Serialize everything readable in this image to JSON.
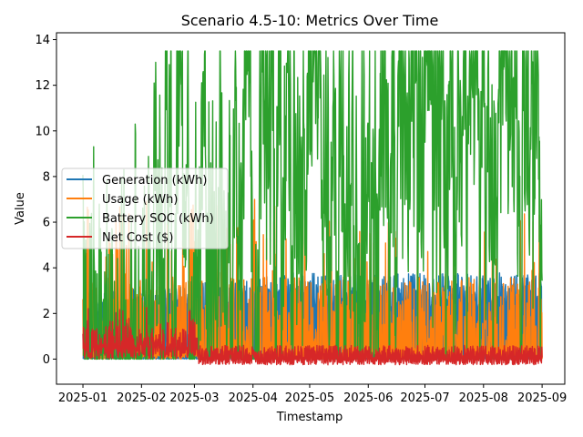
{
  "chart_data": {
    "type": "line",
    "title": "Scenario 4.5-10: Metrics Over Time",
    "xlabel": "Timestamp",
    "ylabel": "Value",
    "x_ticks": [
      "2025-01",
      "2025-02",
      "2025-03",
      "2025-04",
      "2025-05",
      "2025-06",
      "2025-07",
      "2025-08",
      "2025-09"
    ],
    "y_ticks": [
      "0",
      "2",
      "4",
      "6",
      "8",
      "10",
      "12",
      "14"
    ],
    "xlim": [
      "2024-12-18",
      "2025-09-13"
    ],
    "ylim": [
      -1.1,
      14.3
    ],
    "x_range": [
      "2025-01-01",
      "2025-09-01"
    ],
    "legend_position": "center-left",
    "grid": false,
    "series": [
      {
        "name": "Generation (kWh)",
        "color": "#1f77b4",
        "daily_peak_range": [
          2.9,
          3.8
        ],
        "min": 0.0
      },
      {
        "name": "Usage (kWh)",
        "color": "#ff7f0e",
        "typical_range": [
          0.0,
          3.8
        ],
        "max": 7.1
      },
      {
        "name": "Battery SOC (kWh)",
        "color": "#2ca02c",
        "min": 0.0,
        "max": 13.5,
        "initial": 12.1
      },
      {
        "name": "Net Cost ($)",
        "color": "#d62728",
        "min": -0.35,
        "max": 1.9
      }
    ]
  }
}
